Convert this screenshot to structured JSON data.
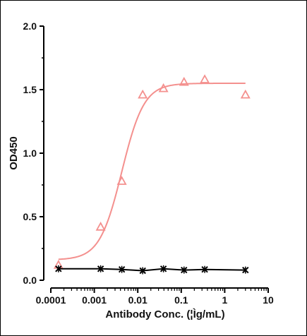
{
  "chart_data": {
    "type": "scatter",
    "title": "",
    "xlabel": "Antibody Conc. (¦Ìg/mL)",
    "ylabel": "OD450",
    "x_scale": "log",
    "xlim": [
      0.0001,
      10
    ],
    "ylim": [
      0,
      2.0
    ],
    "x_ticks": [
      {
        "value": 0.0001,
        "label": "0.0001"
      },
      {
        "value": 0.001,
        "label": "0.001"
      },
      {
        "value": 0.01,
        "label": "0.01"
      },
      {
        "value": 0.1,
        "label": "0.1"
      },
      {
        "value": 1,
        "label": "1"
      },
      {
        "value": 10,
        "label": "10"
      }
    ],
    "y_ticks": [
      {
        "value": 0,
        "label": "0.0"
      },
      {
        "value": 0.5,
        "label": "0.5"
      },
      {
        "value": 1.0,
        "label": "1.0"
      },
      {
        "value": 1.5,
        "label": "1.5"
      },
      {
        "value": 2.0,
        "label": "2.0"
      }
    ],
    "grid": false,
    "legend": "none",
    "series": [
      {
        "marker": "triangle",
        "color": "#f4908e",
        "fit": "sigmoid",
        "fit_bottom": 0.16,
        "fit_top": 1.55,
        "fit_ec50": 0.0043,
        "fit_hill": 1.7,
        "x": [
          0.00015,
          0.0014,
          0.0043,
          0.013,
          0.039,
          0.116,
          0.347,
          3.0
        ],
        "y": [
          0.12,
          0.42,
          0.78,
          1.46,
          1.51,
          1.56,
          1.58,
          1.46
        ]
      },
      {
        "marker": "x",
        "color": "#000000",
        "fit": "line",
        "x": [
          0.00015,
          0.0014,
          0.0043,
          0.013,
          0.039,
          0.116,
          0.347,
          3.0
        ],
        "y": [
          0.09,
          0.09,
          0.085,
          0.075,
          0.09,
          0.08,
          0.085,
          0.08
        ]
      }
    ]
  }
}
